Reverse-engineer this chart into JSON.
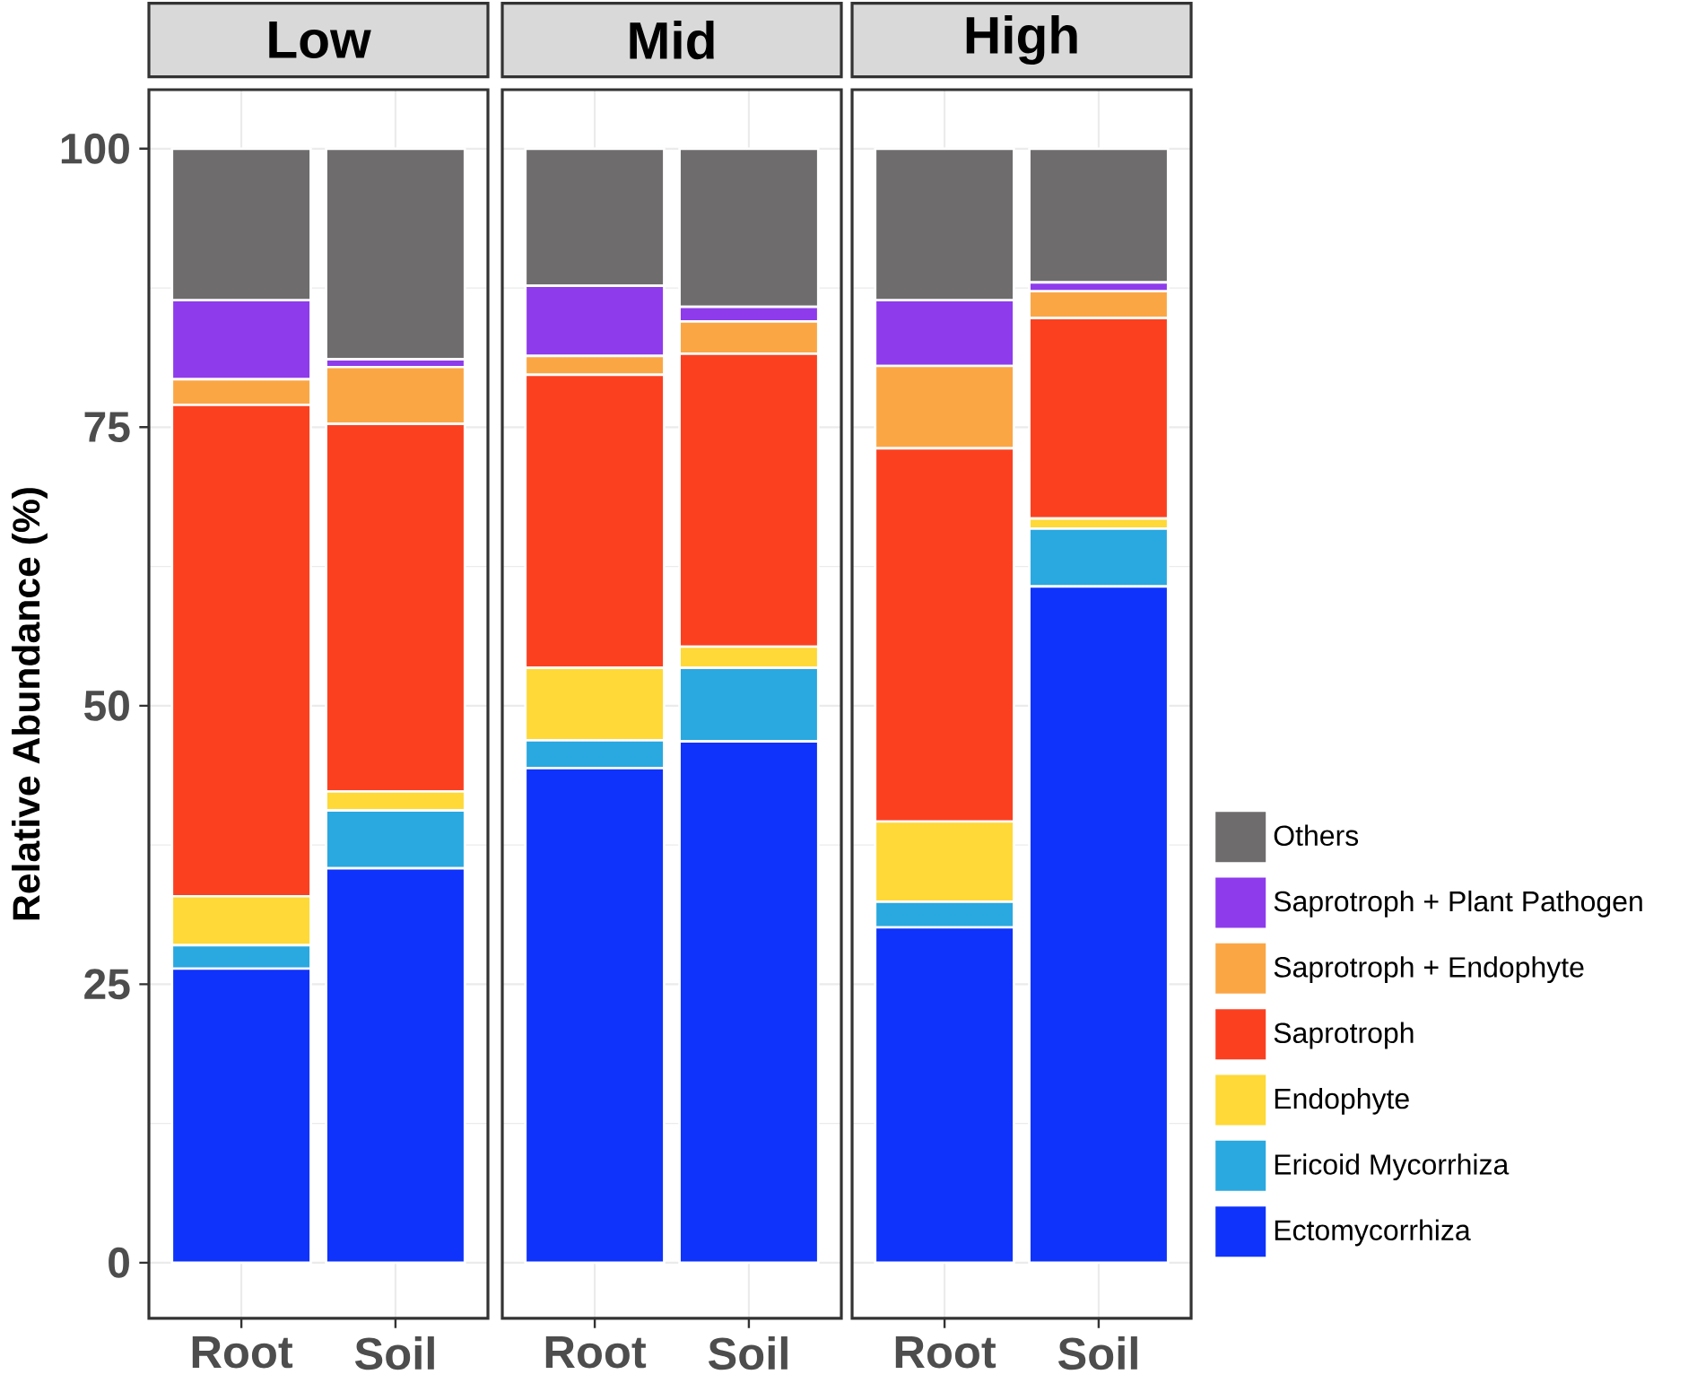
{
  "chart_data": [
    {
      "type": "bar",
      "title": "Low",
      "ylabel": "Relative Abundance (%)",
      "categories": [
        "Root",
        "Soil"
      ],
      "stacked": true,
      "grid": true,
      "ylim": [
        -5,
        105.3
      ],
      "yticks": [
        0,
        25,
        50,
        75,
        100
      ],
      "series": [
        {
          "color": "#0f33fa",
          "values": [
            26.4,
            35.4
          ]
        },
        {
          "color": "#2aa8e0",
          "values": [
            2.1,
            5.2
          ]
        },
        {
          "color": "#fed937",
          "values": [
            4.4,
            1.7
          ]
        },
        {
          "color": "#fb4020",
          "values": [
            44.1,
            33.0
          ]
        },
        {
          "color": "#fba645",
          "values": [
            2.3,
            5.1
          ]
        },
        {
          "color": "#8e3bec",
          "values": [
            7.1,
            0.7
          ]
        },
        {
          "color": "#6e6c6d",
          "values": [
            13.6,
            18.9
          ]
        }
      ]
    },
    {
      "type": "bar",
      "title": "Mid",
      "categories": [
        "Root",
        "Soil"
      ],
      "stacked": true,
      "grid": true,
      "ylim": [
        -5,
        105.3
      ],
      "yticks": [
        0,
        25,
        50,
        75,
        100
      ],
      "tick_labels": "x",
      "series": [
        {
          "color": "#0f33fa",
          "values": [
            44.4,
            46.8
          ]
        },
        {
          "color": "#2aa8e0",
          "values": [
            2.5,
            6.6
          ]
        },
        {
          "color": "#fed937",
          "values": [
            6.5,
            1.9
          ]
        },
        {
          "color": "#fb4020",
          "values": [
            26.3,
            26.3
          ]
        },
        {
          "color": "#fba645",
          "values": [
            1.7,
            2.9
          ]
        },
        {
          "color": "#8e3bec",
          "values": [
            6.3,
            1.3
          ]
        },
        {
          "color": "#6e6c6d",
          "values": [
            12.3,
            14.2
          ]
        }
      ]
    },
    {
      "type": "bar",
      "title": "High",
      "categories": [
        "Root",
        "Soil"
      ],
      "stacked": true,
      "grid": true,
      "legend": "right",
      "ylim": [
        -5,
        105.3
      ],
      "yticks": [
        0,
        25,
        50,
        75,
        100
      ],
      "tick_labels": "x",
      "series": [
        {
          "name": "Ectomycorrhiza",
          "color": "#0f33fa",
          "values": [
            30.1,
            60.7
          ]
        },
        {
          "name": "Ericoid Mycorrhiza",
          "color": "#2aa8e0",
          "values": [
            2.3,
            5.2
          ]
        },
        {
          "name": "Endophyte",
          "color": "#fed937",
          "values": [
            7.2,
            0.9
          ]
        },
        {
          "name": "Saprotroph",
          "color": "#fb4020",
          "values": [
            33.5,
            18.0
          ]
        },
        {
          "name": "Saprotroph + Endophyte",
          "color": "#fba645",
          "values": [
            7.4,
            2.4
          ]
        },
        {
          "name": "Saprotroph + Plant Pathogen",
          "color": "#8e3bec",
          "values": [
            5.9,
            0.8
          ]
        },
        {
          "name": "Others",
          "color": "#6e6c6d",
          "values": [
            13.6,
            12.0
          ]
        }
      ]
    }
  ]
}
